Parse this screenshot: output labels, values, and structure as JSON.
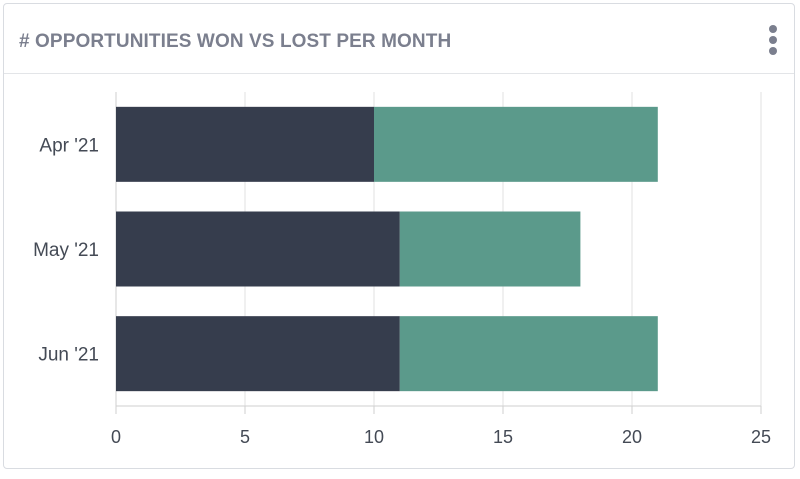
{
  "card": {
    "title": "# OPPORTUNITIES WON VS LOST PER MONTH",
    "menu_icon": "vertical-ellipsis-icon"
  },
  "colors": {
    "won": "#363d4d",
    "lost": "#5b9a8b",
    "grid": "#e2e2e2",
    "axis": "#cfcfcf",
    "title": "#7b7f8e",
    "text": "#444a55"
  },
  "chart_data": {
    "type": "bar",
    "orientation": "horizontal",
    "stacked": true,
    "title": "# OPPORTUNITIES WON VS LOST PER MONTH",
    "categories": [
      "Apr '21",
      "May '21",
      "Jun '21"
    ],
    "series": [
      {
        "values": [
          10,
          11,
          11
        ]
      },
      {
        "values": [
          11,
          7,
          10
        ]
      }
    ],
    "xlim": [
      0,
      25
    ],
    "xticks": [
      0,
      5,
      10,
      15,
      20,
      25
    ],
    "grid": true,
    "legend": "none"
  }
}
